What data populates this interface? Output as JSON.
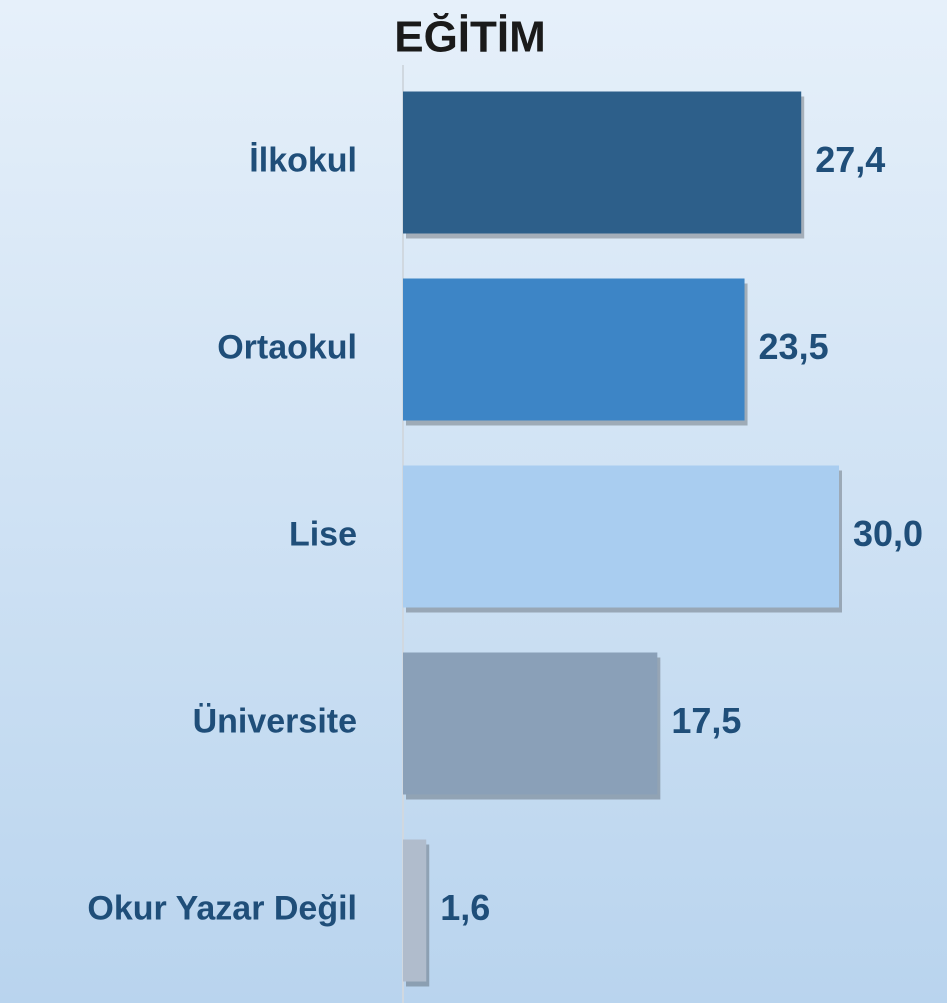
{
  "chart_data": {
    "type": "barh",
    "title": "EĞİTİM",
    "categories": [
      "İlkokul",
      "Ortaokul",
      "Lise",
      "Üniversite",
      "Okur Yazar Değil"
    ],
    "values": [
      27.4,
      23.5,
      30.0,
      17.5,
      1.6
    ],
    "value_labels": [
      "27,4",
      "23,5",
      "30,0",
      "17,5",
      "1,6"
    ],
    "colors": [
      "#2d5f8a",
      "#3d85c6",
      "#a9cdf0",
      "#8aa0b8",
      "#b0bccc"
    ]
  }
}
